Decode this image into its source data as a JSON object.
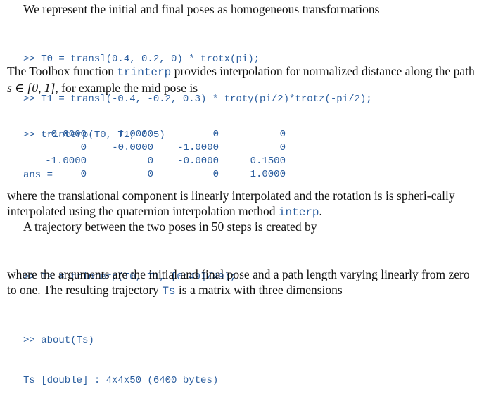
{
  "intro": "We represent the initial and final poses as homogeneous transformations",
  "code1": [
    ">> T0 = transl(0.4, 0.2, 0) * trotx(pi);",
    ">> T1 = transl(-0.4, -0.2, 0.3) * troty(pi/2)*trotz(-pi/2);"
  ],
  "para2": {
    "before": "The Toolbox function ",
    "code_word": "trinterp",
    "after": " provides interpolation for normalized distance along the path ",
    "math": "s ∈ [0, 1]",
    "tail": ", for example the mid pose is"
  },
  "code2": [
    ">> trinterp(T0, T1, 0.5)",
    "ans ="
  ],
  "matrix": [
    [
      "-0.0000",
      "1.0000",
      "0",
      "0"
    ],
    [
      "0",
      "-0.0000",
      "-1.0000",
      "0"
    ],
    [
      "-1.0000",
      "0",
      "-0.0000",
      "0.1500"
    ],
    [
      "0",
      "0",
      "0",
      "1.0000"
    ]
  ],
  "para3": {
    "before": "where the translational component is linearly interpolated and the rotation is is spheri-cally interpolated using the quaternion interpolation method ",
    "code_word": "interp",
    "after": "."
  },
  "para4": "A trajectory between the two poses in 50 steps is created by",
  "code3": ">> Ts = trinterp(T0, T1, [0:49]/49);",
  "para5": {
    "before": "where the arguments are the initial and final pose and a path length varying linearly from zero to one. The resulting trajectory ",
    "code_word": "Ts",
    "after": " is a matrix with three dimensions"
  },
  "code4": [
    ">> about(Ts)",
    "Ts [double] : 4x4x50 (6400 bytes)"
  ]
}
